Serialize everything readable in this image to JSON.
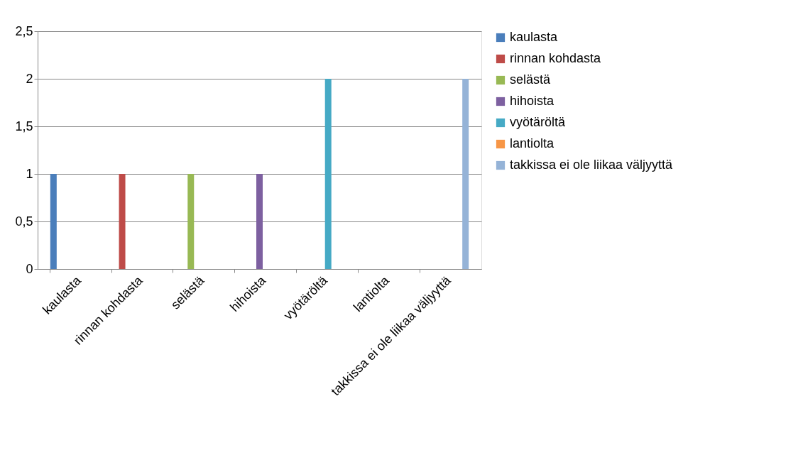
{
  "chart_data": {
    "type": "bar",
    "categories": [
      "kaulasta",
      "rinnan kohdasta",
      "selästä",
      "hihoista",
      "vyötäröltä",
      "lantiolta",
      "takkissa ei ole liikaa väljyyttä"
    ],
    "series": [
      {
        "name": "kaulasta",
        "color": "#4a7ebb",
        "values": [
          1,
          null,
          null,
          null,
          null,
          null,
          null
        ]
      },
      {
        "name": "rinnan kohdasta",
        "color": "#be4b48",
        "values": [
          null,
          1,
          null,
          null,
          null,
          null,
          null
        ]
      },
      {
        "name": "selästä",
        "color": "#98b954",
        "values": [
          null,
          null,
          1,
          null,
          null,
          null,
          null
        ]
      },
      {
        "name": "hihoista",
        "color": "#7d60a0",
        "values": [
          null,
          null,
          null,
          1,
          null,
          null,
          null
        ]
      },
      {
        "name": "vyötäröltä",
        "color": "#46aac5",
        "values": [
          null,
          null,
          null,
          null,
          2,
          null,
          null
        ]
      },
      {
        "name": "lantiolta",
        "color": "#f79646",
        "values": [
          null,
          null,
          null,
          null,
          null,
          0,
          null
        ]
      },
      {
        "name": "takkissa ei ole liikaa väljyyttä",
        "color": "#95b3d7",
        "values": [
          null,
          null,
          null,
          null,
          null,
          null,
          2
        ]
      }
    ],
    "ylim": [
      0,
      2.5
    ],
    "yticks": [
      0,
      {
        "value": 0.5,
        "label": "0,5"
      },
      1,
      {
        "value": 1.5,
        "label": "1,5"
      },
      2,
      {
        "value": 2.5,
        "label": "2,5"
      }
    ],
    "grid": "y",
    "legend": "right"
  }
}
